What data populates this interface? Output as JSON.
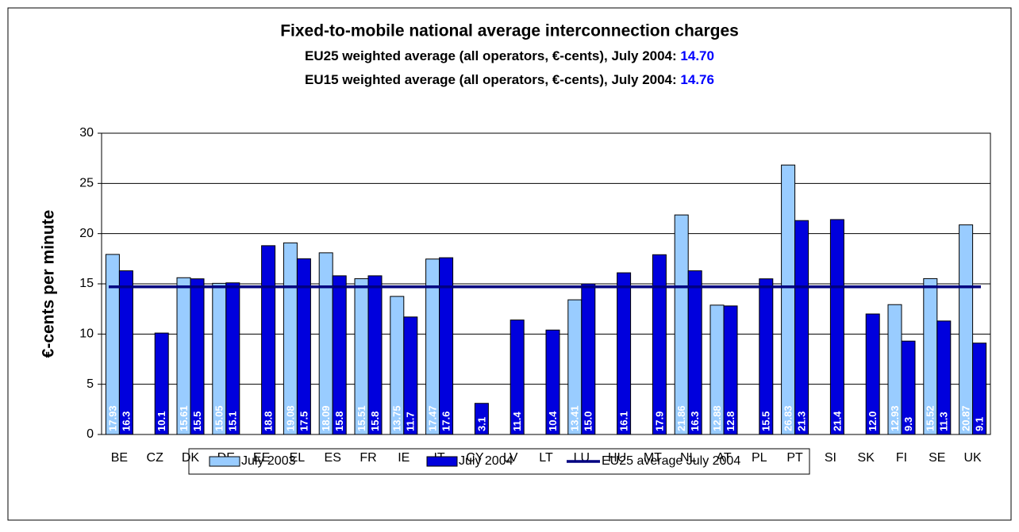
{
  "chart_data": {
    "type": "bar",
    "title": "Fixed-to-mobile national average interconnection charges",
    "subtitles": [
      {
        "text": "EU25  weighted average (all operators, €-cents), July 2004: ",
        "value": {
          "value": 14.7,
          "label": "14.70"
        }
      },
      {
        "text": "EU15  weighted average (all operators, €-cents), July 2004: ",
        "value": 14.76
      }
    ],
    "y_label": "€-cents per minute",
    "categories": [
      "BE",
      "CZ",
      "DK",
      "DE",
      "EE",
      "EL",
      "ES",
      "FR",
      "IE",
      "IT",
      "CY",
      "LV",
      "LT",
      "LU",
      "HU",
      "MT",
      "NL",
      "AT",
      "PL",
      "PT",
      "SI",
      "SK",
      "FI",
      "SE",
      "UK"
    ],
    "series": [
      {
        "name": "July 2003",
        "color": "#99ccff",
        "values": [
          17.93,
          null,
          15.61,
          15.05,
          null,
          19.08,
          18.09,
          15.51,
          13.75,
          17.47,
          null,
          null,
          null,
          13.41,
          null,
          null,
          21.86,
          12.88,
          null,
          26.83,
          null,
          null,
          12.93,
          15.52,
          20.87
        ]
      },
      {
        "name": "July 2004",
        "color": "#0000dd",
        "values": [
          16.3,
          10.1,
          15.5,
          15.1,
          18.8,
          17.5,
          15.8,
          15.8,
          11.7,
          17.6,
          3.1,
          11.4,
          10.4,
          15,
          16.1,
          17.9,
          16.3,
          12.8,
          15.5,
          21.3,
          21.4,
          12,
          9.3,
          11.3,
          9.1
        ],
        "value_labels": [
          "16.3",
          "10.1",
          "15.5",
          "15.1",
          "18.8",
          "17.5",
          "15.8",
          "15.8",
          "11.7",
          "17.6",
          "3.1",
          "11.4",
          "10.4",
          "15.0",
          "16.1",
          "17.9",
          "16.3",
          "12.8",
          "15.5",
          "21.3",
          "21.4",
          "12.0",
          "9.3",
          "11.3",
          "9.1"
        ]
      }
    ],
    "average_line": {
      "name": "EU25 average July 2004",
      "color": "#000080"
    },
    "ylim": [
      0,
      30
    ],
    "yticks": [
      0,
      5,
      10,
      15,
      20,
      25,
      30
    ],
    "grid": true
  }
}
